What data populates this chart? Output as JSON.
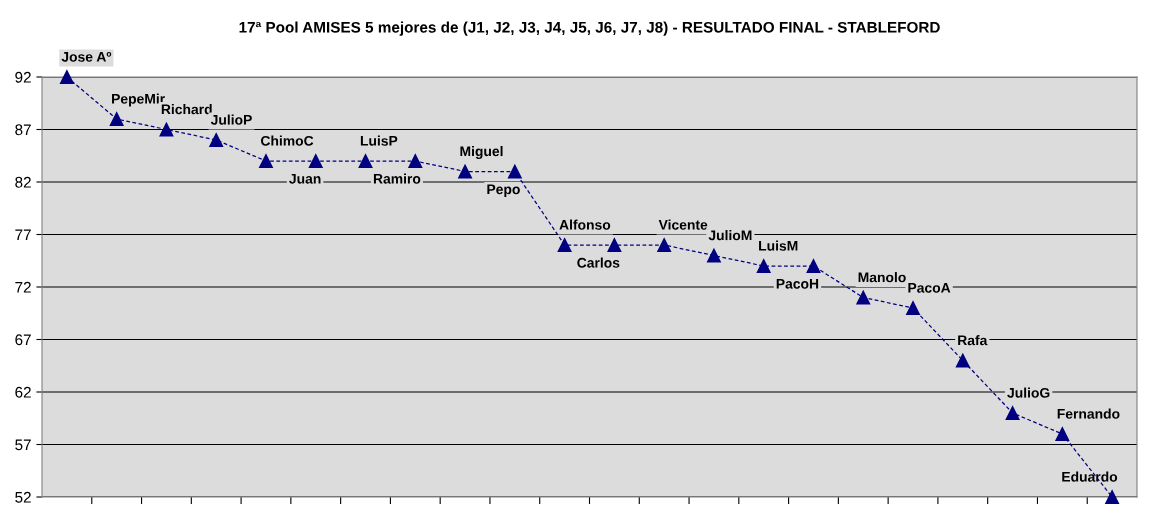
{
  "chart_data": {
    "type": "line",
    "title": "17ª Pool AMISES 5 mejores de (J1, J2, J3, J4, J5, J6, J7, J8) - RESULTADO FINAL - STABLEFORD",
    "categories": [
      null,
      null,
      null,
      null,
      null,
      null,
      null,
      null,
      null,
      null,
      null,
      null,
      null,
      null,
      null,
      null,
      null,
      null,
      null,
      null,
      null,
      null
    ],
    "series": [
      {
        "color": "#000080",
        "values": [
          92,
          88,
          87,
          86,
          84,
          84,
          84,
          84,
          83,
          83,
          76,
          76,
          76,
          75,
          74,
          74,
          71,
          70,
          65,
          60,
          58,
          52
        ],
        "value_labels": [
          "Jose Aº",
          "PepeMir",
          "Richard",
          "JulioP",
          "ChimoC",
          "Juan",
          "LuisP",
          "Ramiro",
          "Miguel",
          "Pepo",
          "Alfonso",
          "Carlos",
          "Vicente",
          "JulioM",
          "LuisM",
          "PacoH",
          "Manolo",
          "PacoA",
          "Rafa",
          "JulioG",
          "Fernando",
          "Eduardo"
        ]
      }
    ],
    "ylim": [
      52,
      92
    ],
    "yticks": [
      52,
      57,
      62,
      67,
      72,
      77,
      82,
      87,
      92
    ],
    "grid": "y",
    "legend": false,
    "marker": "triangle",
    "line_style": "dashed"
  }
}
